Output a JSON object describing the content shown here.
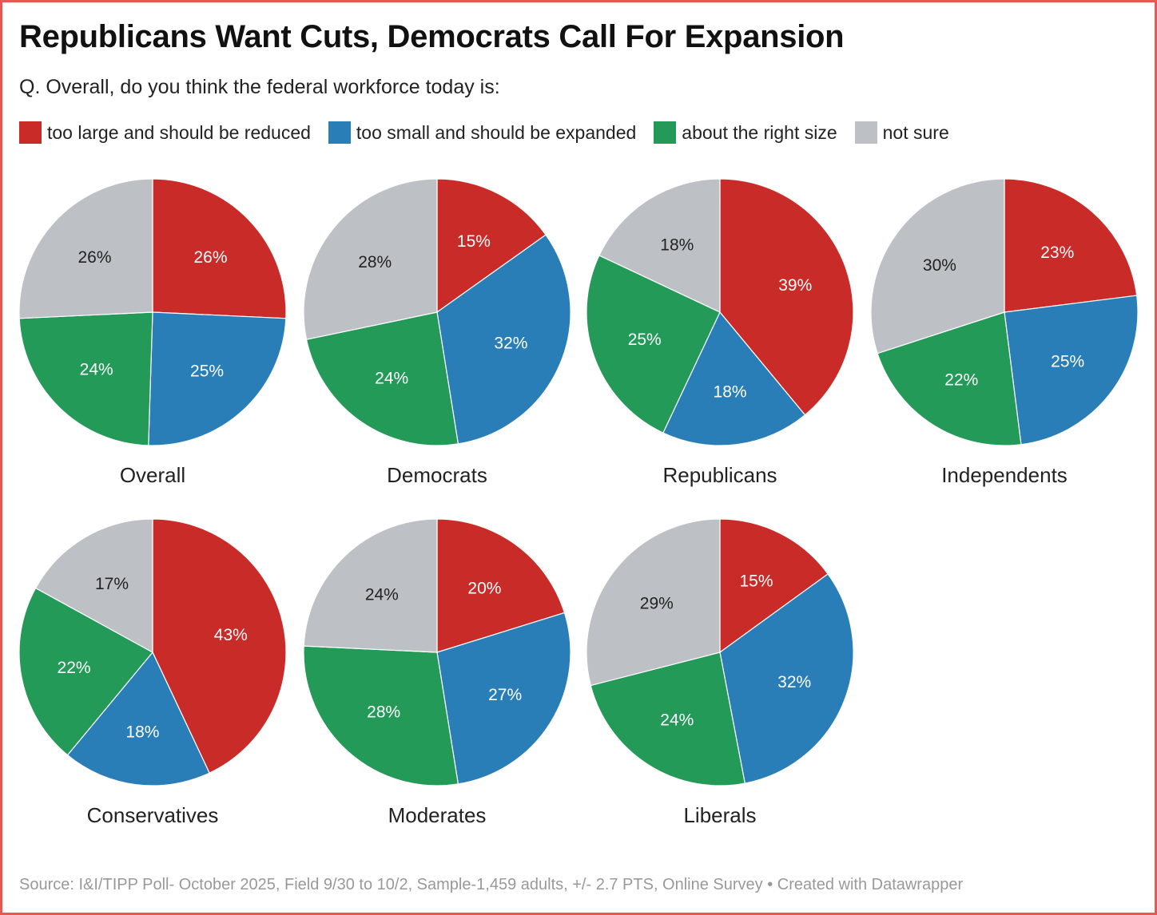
{
  "chart_data": {
    "type": "pie",
    "title": "Republicans Want Cuts, Democrats Call For Expansion",
    "subtitle": "Q. Overall, do you think the federal workforce today is:",
    "legend_position": "top",
    "categories": [
      "too large and should be reduced",
      "too small and should be expanded",
      "about the right size",
      "not sure"
    ],
    "colors": [
      "#c92c28",
      "#2a7eb8",
      "#239a57",
      "#bdc0c4"
    ],
    "pies": [
      {
        "name": "Overall",
        "values": [
          26,
          25,
          24,
          26
        ]
      },
      {
        "name": "Democrats",
        "values": [
          15,
          32,
          24,
          28
        ]
      },
      {
        "name": "Republicans",
        "values": [
          39,
          18,
          25,
          18
        ]
      },
      {
        "name": "Independents",
        "values": [
          23,
          25,
          22,
          30
        ]
      },
      {
        "name": "Conservatives",
        "values": [
          43,
          18,
          22,
          17
        ]
      },
      {
        "name": "Moderates",
        "values": [
          20,
          27,
          28,
          24
        ]
      },
      {
        "name": "Liberals",
        "values": [
          15,
          32,
          24,
          29
        ]
      }
    ],
    "unit": "%"
  },
  "footer": "Source: I&I/TIPP Poll- October 2025, Field 9/30 to 10/2, Sample-1,459 adults, +/- 2.7 PTS, Online Survey • Created with Datawrapper"
}
